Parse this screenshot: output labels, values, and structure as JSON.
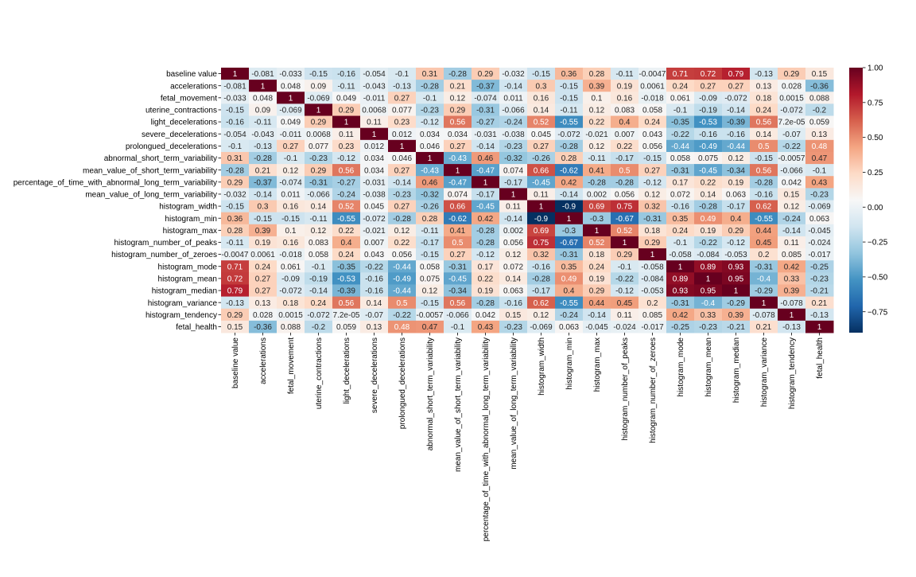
{
  "chart_data": {
    "type": "heatmap",
    "title": "",
    "colormap": "RdBu_r",
    "vmin": -0.9,
    "vmax": 1.0,
    "colorbar_ticks": [
      "1.00",
      "0.75",
      "0.50",
      "0.25",
      "0.00",
      "−0.25",
      "−0.50",
      "−0.75"
    ],
    "colorbar_tick_values": [
      1.0,
      0.75,
      0.5,
      0.25,
      0.0,
      -0.25,
      -0.5,
      -0.75
    ],
    "labels": [
      "baseline value",
      "accelerations",
      "fetal_movement",
      "uterine_contractions",
      "light_decelerations",
      "severe_decelerations",
      "prolongued_decelerations",
      "abnormal_short_term_variability",
      "mean_value_of_short_term_variability",
      "percentage_of_time_with_abnormal_long_term_variability",
      "mean_value_of_long_term_variability",
      "histogram_width",
      "histogram_min",
      "histogram_max",
      "histogram_number_of_peaks",
      "histogram_number_of_zeroes",
      "histogram_mode",
      "histogram_mean",
      "histogram_median",
      "histogram_variance",
      "histogram_tendency",
      "fetal_health"
    ],
    "values": [
      [
        "1",
        "-0.081",
        "-0.033",
        "-0.15",
        "-0.16",
        "-0.054",
        "-0.1",
        "0.31",
        "-0.28",
        "0.29",
        "-0.032",
        "-0.15",
        "0.36",
        "0.28",
        "-0.11",
        "-0.0047",
        "0.71",
        "0.72",
        "0.79",
        "-0.13",
        "0.29",
        "0.15"
      ],
      [
        "-0.081",
        "1",
        "0.048",
        "0.09",
        "-0.11",
        "-0.043",
        "-0.13",
        "-0.28",
        "0.21",
        "-0.37",
        "-0.14",
        "0.3",
        "-0.15",
        "0.39",
        "0.19",
        "0.0061",
        "0.24",
        "0.27",
        "0.27",
        "0.13",
        "0.028",
        "-0.36"
      ],
      [
        "-0.033",
        "0.048",
        "1",
        "-0.069",
        "0.049",
        "-0.011",
        "0.27",
        "-0.1",
        "0.12",
        "-0.074",
        "0.011",
        "0.16",
        "-0.15",
        "0.1",
        "0.16",
        "-0.018",
        "0.061",
        "-0.09",
        "-0.072",
        "0.18",
        "0.0015",
        "0.088"
      ],
      [
        "-0.15",
        "0.09",
        "-0.069",
        "1",
        "0.29",
        "0.0068",
        "0.077",
        "-0.23",
        "0.29",
        "-0.31",
        "-0.066",
        "0.14",
        "-0.11",
        "0.12",
        "0.083",
        "0.058",
        "-0.1",
        "-0.19",
        "-0.14",
        "0.24",
        "-0.072",
        "-0.2"
      ],
      [
        "-0.16",
        "-0.11",
        "0.049",
        "0.29",
        "1",
        "0.11",
        "0.23",
        "-0.12",
        "0.56",
        "-0.27",
        "-0.24",
        "0.52",
        "-0.55",
        "0.22",
        "0.4",
        "0.24",
        "-0.35",
        "-0.53",
        "-0.39",
        "0.56",
        "7.2e-05",
        "0.059"
      ],
      [
        "-0.054",
        "-0.043",
        "-0.011",
        "0.0068",
        "0.11",
        "1",
        "0.012",
        "0.034",
        "0.034",
        "-0.031",
        "-0.038",
        "0.045",
        "-0.072",
        "-0.021",
        "0.007",
        "0.043",
        "-0.22",
        "-0.16",
        "-0.16",
        "0.14",
        "-0.07",
        "0.13"
      ],
      [
        "-0.1",
        "-0.13",
        "0.27",
        "0.077",
        "0.23",
        "0.012",
        "1",
        "0.046",
        "0.27",
        "-0.14",
        "-0.23",
        "0.27",
        "-0.28",
        "0.12",
        "0.22",
        "0.056",
        "-0.44",
        "-0.49",
        "-0.44",
        "0.5",
        "-0.22",
        "0.48"
      ],
      [
        "0.31",
        "-0.28",
        "-0.1",
        "-0.23",
        "-0.12",
        "0.034",
        "0.046",
        "1",
        "-0.43",
        "0.46",
        "-0.32",
        "-0.26",
        "0.28",
        "-0.11",
        "-0.17",
        "-0.15",
        "0.058",
        "0.075",
        "0.12",
        "-0.15",
        "-0.0057",
        "0.47"
      ],
      [
        "-0.28",
        "0.21",
        "0.12",
        "0.29",
        "0.56",
        "0.034",
        "0.27",
        "-0.43",
        "1",
        "-0.47",
        "0.074",
        "0.66",
        "-0.62",
        "0.41",
        "0.5",
        "0.27",
        "-0.31",
        "-0.45",
        "-0.34",
        "0.56",
        "-0.066",
        "-0.1"
      ],
      [
        "0.29",
        "-0.37",
        "-0.074",
        "-0.31",
        "-0.27",
        "-0.031",
        "-0.14",
        "0.46",
        "-0.47",
        "1",
        "-0.17",
        "-0.45",
        "0.42",
        "-0.28",
        "-0.28",
        "-0.12",
        "0.17",
        "0.22",
        "0.19",
        "-0.28",
        "0.042",
        "0.43"
      ],
      [
        "-0.032",
        "-0.14",
        "0.011",
        "-0.066",
        "-0.24",
        "-0.038",
        "-0.23",
        "-0.32",
        "0.074",
        "-0.17",
        "1",
        "0.11",
        "-0.14",
        "0.002",
        "0.056",
        "0.12",
        "0.072",
        "0.14",
        "0.063",
        "-0.16",
        "0.15",
        "-0.23"
      ],
      [
        "-0.15",
        "0.3",
        "0.16",
        "0.14",
        "0.52",
        "0.045",
        "0.27",
        "-0.26",
        "0.66",
        "-0.45",
        "0.11",
        "1",
        "-0.9",
        "0.69",
        "0.75",
        "0.32",
        "-0.16",
        "-0.28",
        "-0.17",
        "0.62",
        "0.12",
        "-0.069"
      ],
      [
        "0.36",
        "-0.15",
        "-0.15",
        "-0.11",
        "-0.55",
        "-0.072",
        "-0.28",
        "0.28",
        "-0.62",
        "0.42",
        "-0.14",
        "-0.9",
        "1",
        "-0.3",
        "-0.67",
        "-0.31",
        "0.35",
        "0.49",
        "0.4",
        "-0.55",
        "-0.24",
        "0.063"
      ],
      [
        "0.28",
        "0.39",
        "0.1",
        "0.12",
        "0.22",
        "-0.021",
        "0.12",
        "-0.11",
        "0.41",
        "-0.28",
        "0.002",
        "0.69",
        "-0.3",
        "1",
        "0.52",
        "0.18",
        "0.24",
        "0.19",
        "0.29",
        "0.44",
        "-0.14",
        "-0.045"
      ],
      [
        "-0.11",
        "0.19",
        "0.16",
        "0.083",
        "0.4",
        "0.007",
        "0.22",
        "-0.17",
        "0.5",
        "-0.28",
        "0.056",
        "0.75",
        "-0.67",
        "0.52",
        "1",
        "0.29",
        "-0.1",
        "-0.22",
        "-0.12",
        "0.45",
        "0.11",
        "-0.024"
      ],
      [
        "-0.0047",
        "0.0061",
        "-0.018",
        "0.058",
        "0.24",
        "0.043",
        "0.056",
        "-0.15",
        "0.27",
        "-0.12",
        "0.12",
        "0.32",
        "-0.31",
        "0.18",
        "0.29",
        "1",
        "-0.058",
        "-0.084",
        "-0.053",
        "0.2",
        "0.085",
        "-0.017"
      ],
      [
        "0.71",
        "0.24",
        "0.061",
        "-0.1",
        "-0.35",
        "-0.22",
        "-0.44",
        "0.058",
        "-0.31",
        "0.17",
        "0.072",
        "-0.16",
        "0.35",
        "0.24",
        "-0.1",
        "-0.058",
        "1",
        "0.89",
        "0.93",
        "-0.31",
        "0.42",
        "-0.25"
      ],
      [
        "0.72",
        "0.27",
        "-0.09",
        "-0.19",
        "-0.53",
        "-0.16",
        "-0.49",
        "0.075",
        "-0.45",
        "0.22",
        "0.14",
        "-0.28",
        "0.49",
        "0.19",
        "-0.22",
        "-0.084",
        "0.89",
        "1",
        "0.95",
        "-0.4",
        "0.33",
        "-0.23"
      ],
      [
        "0.79",
        "0.27",
        "-0.072",
        "-0.14",
        "-0.39",
        "-0.16",
        "-0.44",
        "0.12",
        "-0.34",
        "0.19",
        "0.063",
        "-0.17",
        "0.4",
        "0.29",
        "-0.12",
        "-0.053",
        "0.93",
        "0.95",
        "1",
        "-0.29",
        "0.39",
        "-0.21"
      ],
      [
        "-0.13",
        "0.13",
        "0.18",
        "0.24",
        "0.56",
        "0.14",
        "0.5",
        "-0.15",
        "0.56",
        "-0.28",
        "-0.16",
        "0.62",
        "-0.55",
        "0.44",
        "0.45",
        "0.2",
        "-0.31",
        "-0.4",
        "-0.29",
        "1",
        "-0.078",
        "0.21"
      ],
      [
        "0.29",
        "0.028",
        "0.0015",
        "-0.072",
        "7.2e-05",
        "-0.07",
        "-0.22",
        "-0.0057",
        "-0.066",
        "0.042",
        "0.15",
        "0.12",
        "-0.24",
        "-0.14",
        "0.11",
        "0.085",
        "0.42",
        "0.33",
        "0.39",
        "-0.078",
        "1",
        "-0.13"
      ],
      [
        "0.15",
        "-0.36",
        "0.088",
        "-0.2",
        "0.059",
        "0.13",
        "0.48",
        "0.47",
        "-0.1",
        "0.43",
        "-0.23",
        "-0.069",
        "0.063",
        "-0.045",
        "-0.024",
        "-0.017",
        "-0.25",
        "-0.23",
        "-0.21",
        "0.21",
        "-0.13",
        "1"
      ]
    ]
  }
}
